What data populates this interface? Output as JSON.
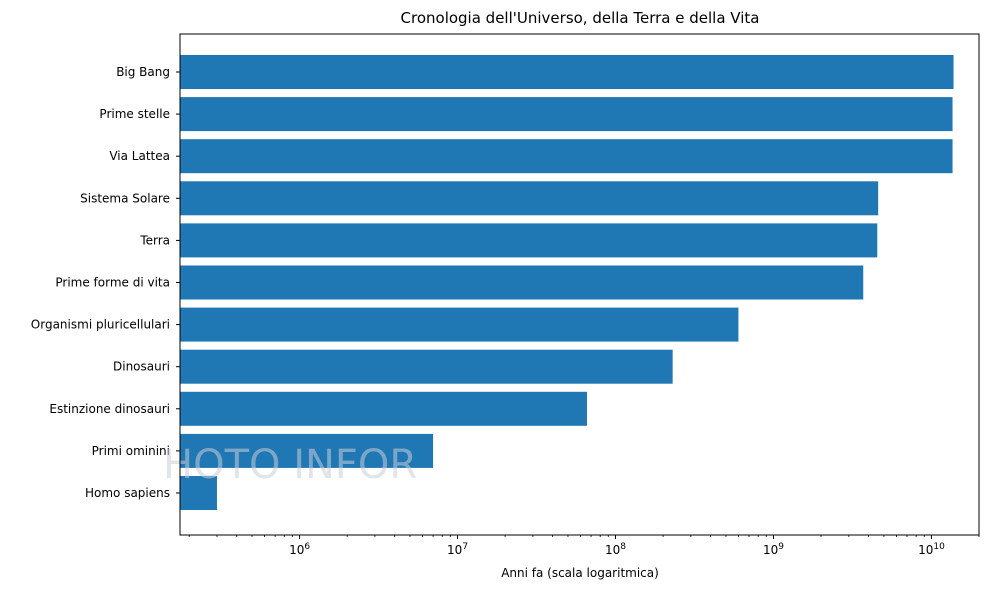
{
  "chart_data": {
    "type": "bar",
    "orientation": "horizontal",
    "title": "Cronologia dell'Universo, della Terra e della Vita",
    "xlabel": "Anni fa (scala logaritmica)",
    "ylabel": "",
    "xscale": "log",
    "xlim": [
      175000,
      20000000000
    ],
    "xticks": [
      {
        "value": 1000000,
        "base": "10",
        "exp": "6"
      },
      {
        "value": 10000000,
        "base": "10",
        "exp": "7"
      },
      {
        "value": 100000000,
        "base": "10",
        "exp": "8"
      },
      {
        "value": 1000000000,
        "base": "10",
        "exp": "9"
      },
      {
        "value": 10000000000,
        "base": "10",
        "exp": "10"
      }
    ],
    "categories": [
      "Big Bang",
      "Prime stelle",
      "Via Lattea",
      "Sistema Solare",
      "Terra",
      "Prime forme di vita",
      "Organismi pluricellulari",
      "Dinosauri",
      "Estinzione dinosauri",
      "Primi ominini",
      "Homo sapiens"
    ],
    "values": [
      13800000000,
      13600000000,
      13600000000,
      4600000000,
      4540000000,
      3700000000,
      600000000,
      230000000,
      66000000,
      7000000,
      300000
    ],
    "bar_color": "#1f77b4",
    "grid": false,
    "legend": "none"
  },
  "watermark": {
    "text": "HOTO INFOR"
  }
}
